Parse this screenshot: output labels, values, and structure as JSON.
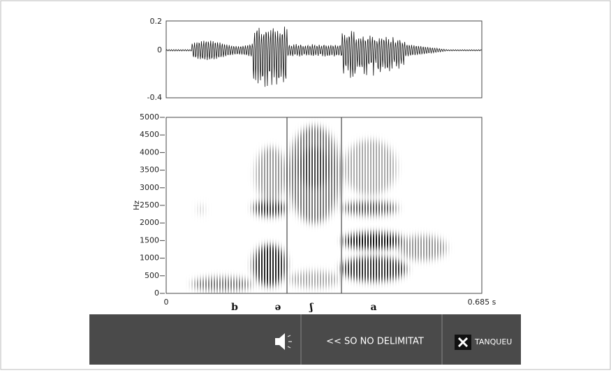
{
  "waveform": {
    "yticks": [
      "0.2",
      "0",
      "-0.4"
    ]
  },
  "spectrogram": {
    "ylabel": "Hz",
    "yticks": [
      "5000",
      "4500",
      "4000",
      "3500",
      "3000",
      "2500",
      "2000",
      "1500",
      "1000",
      "500",
      "0"
    ],
    "xticks": [
      "0",
      "0.685 s"
    ],
    "segments": [
      "b",
      "ə",
      "ʃ",
      "a"
    ]
  },
  "toolbar": {
    "play": "<< SO NO DELIMITAT",
    "close": "TANQUEU"
  }
}
